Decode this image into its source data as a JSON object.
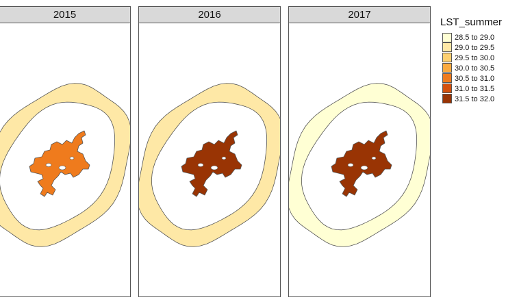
{
  "panels": [
    {
      "year": "2015",
      "ring_class": "29.0 to 29.5",
      "city_class": "30.5 to 31.0"
    },
    {
      "year": "2016",
      "ring_class": "29.0 to 29.5",
      "city_class": "31.5 to 32.0"
    },
    {
      "year": "2017",
      "ring_class": "28.5 to 29.0",
      "city_class": "31.5 to 32.0"
    }
  ],
  "legend": {
    "title": "LST_summer",
    "items": [
      {
        "label": "28.5 to 29.0",
        "color": "#ffffd4"
      },
      {
        "label": "29.0 to 29.5",
        "color": "#fee8a6"
      },
      {
        "label": "29.5 to 30.0",
        "color": "#fed070"
      },
      {
        "label": "30.0 to 30.5",
        "color": "#fbaa3f"
      },
      {
        "label": "30.5 to 31.0",
        "color": "#ef7b1d"
      },
      {
        "label": "31.0 to 31.5",
        "color": "#d4500c"
      },
      {
        "label": "31.5 to 32.0",
        "color": "#993404"
      }
    ]
  }
}
